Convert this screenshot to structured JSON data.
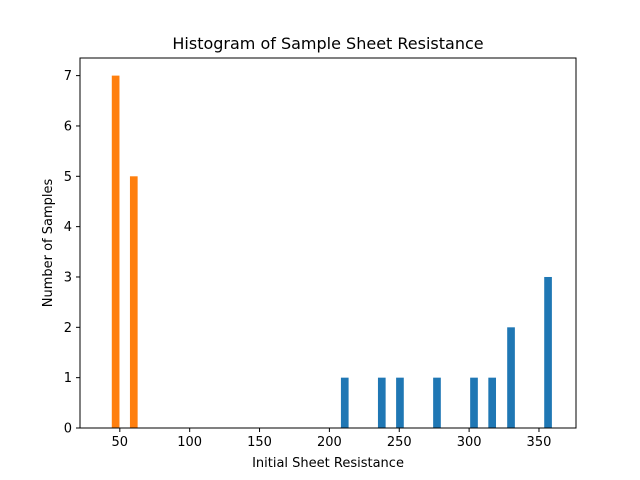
{
  "chart_data": {
    "type": "bar",
    "title": "Histogram of Sample Sheet Resistance",
    "xlabel": "Initial Sheet Resistance",
    "ylabel": "Number of Samples",
    "xlim": [
      21.5,
      376.5
    ],
    "ylim": [
      0,
      7.35
    ],
    "xticks": [
      50,
      100,
      150,
      200,
      250,
      300,
      350
    ],
    "yticks": [
      0,
      1,
      2,
      3,
      4,
      5,
      6,
      7
    ],
    "bar_width": 5.5,
    "grid": false,
    "legend": "none",
    "series": [
      {
        "color": "#1f77b4",
        "x": [
          211,
          237.5,
          250.5,
          277,
          303.5,
          316.5,
          330,
          356.5
        ],
        "values": [
          1,
          1,
          1,
          1,
          1,
          1,
          2,
          3
        ]
      },
      {
        "color": "#ff7f0e",
        "x": [
          47,
          60
        ],
        "values": [
          7,
          5
        ]
      }
    ]
  }
}
